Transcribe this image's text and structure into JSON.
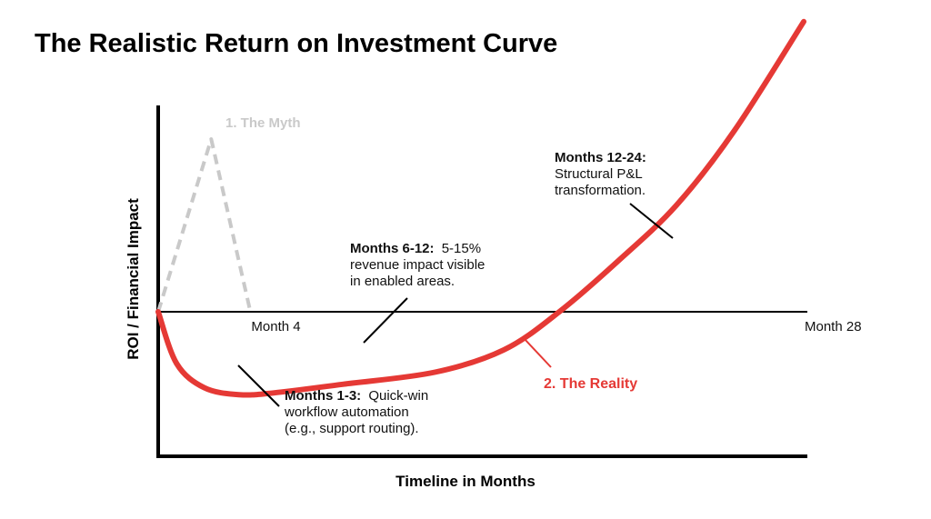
{
  "chart_data": {
    "type": "line",
    "title": "The Realistic Return on Investment Curve",
    "xlabel": "Timeline in Months",
    "ylabel": "ROI / Financial Impact",
    "x_ticks": [
      {
        "x": 4,
        "label": "Month 4"
      },
      {
        "x": 28,
        "label": "Month 28"
      }
    ],
    "xlim": [
      0,
      28
    ],
    "ylim": [
      -1,
      1.3
    ],
    "baseline_y": 0,
    "grid": false,
    "legend": "none",
    "series": [
      {
        "name": "1. The Myth",
        "style": "dashed",
        "color": "#c9c9c9",
        "points": [
          [
            0,
            0
          ],
          [
            2.3,
            1
          ],
          [
            4,
            0
          ]
        ]
      },
      {
        "name": "2. The Reality",
        "style": "solid",
        "color": "#e53935",
        "points": [
          [
            0,
            0
          ],
          [
            0.8,
            -0.3
          ],
          [
            2,
            -0.44
          ],
          [
            3.5,
            -0.48
          ],
          [
            5,
            -0.47
          ],
          [
            8,
            -0.42
          ],
          [
            12,
            -0.35
          ],
          [
            15,
            -0.22
          ],
          [
            17.4,
            0
          ],
          [
            20,
            0.3
          ],
          [
            22.5,
            0.62
          ],
          [
            25,
            1.05
          ],
          [
            28,
            1.68
          ]
        ]
      }
    ],
    "annotations": [
      {
        "key": "m13",
        "bold": "Months 1-3:",
        "lines": [
          "Quick-win",
          "workflow automation",
          "(e.g., support routing)."
        ]
      },
      {
        "key": "m612",
        "bold": "Months 6-12:",
        "lines": [
          "5-15%",
          "revenue impact visible",
          "in enabled areas."
        ]
      },
      {
        "key": "m1224",
        "bold": "Months 12-24:",
        "lines": [
          "Structural P&L",
          "transformation."
        ]
      }
    ]
  }
}
